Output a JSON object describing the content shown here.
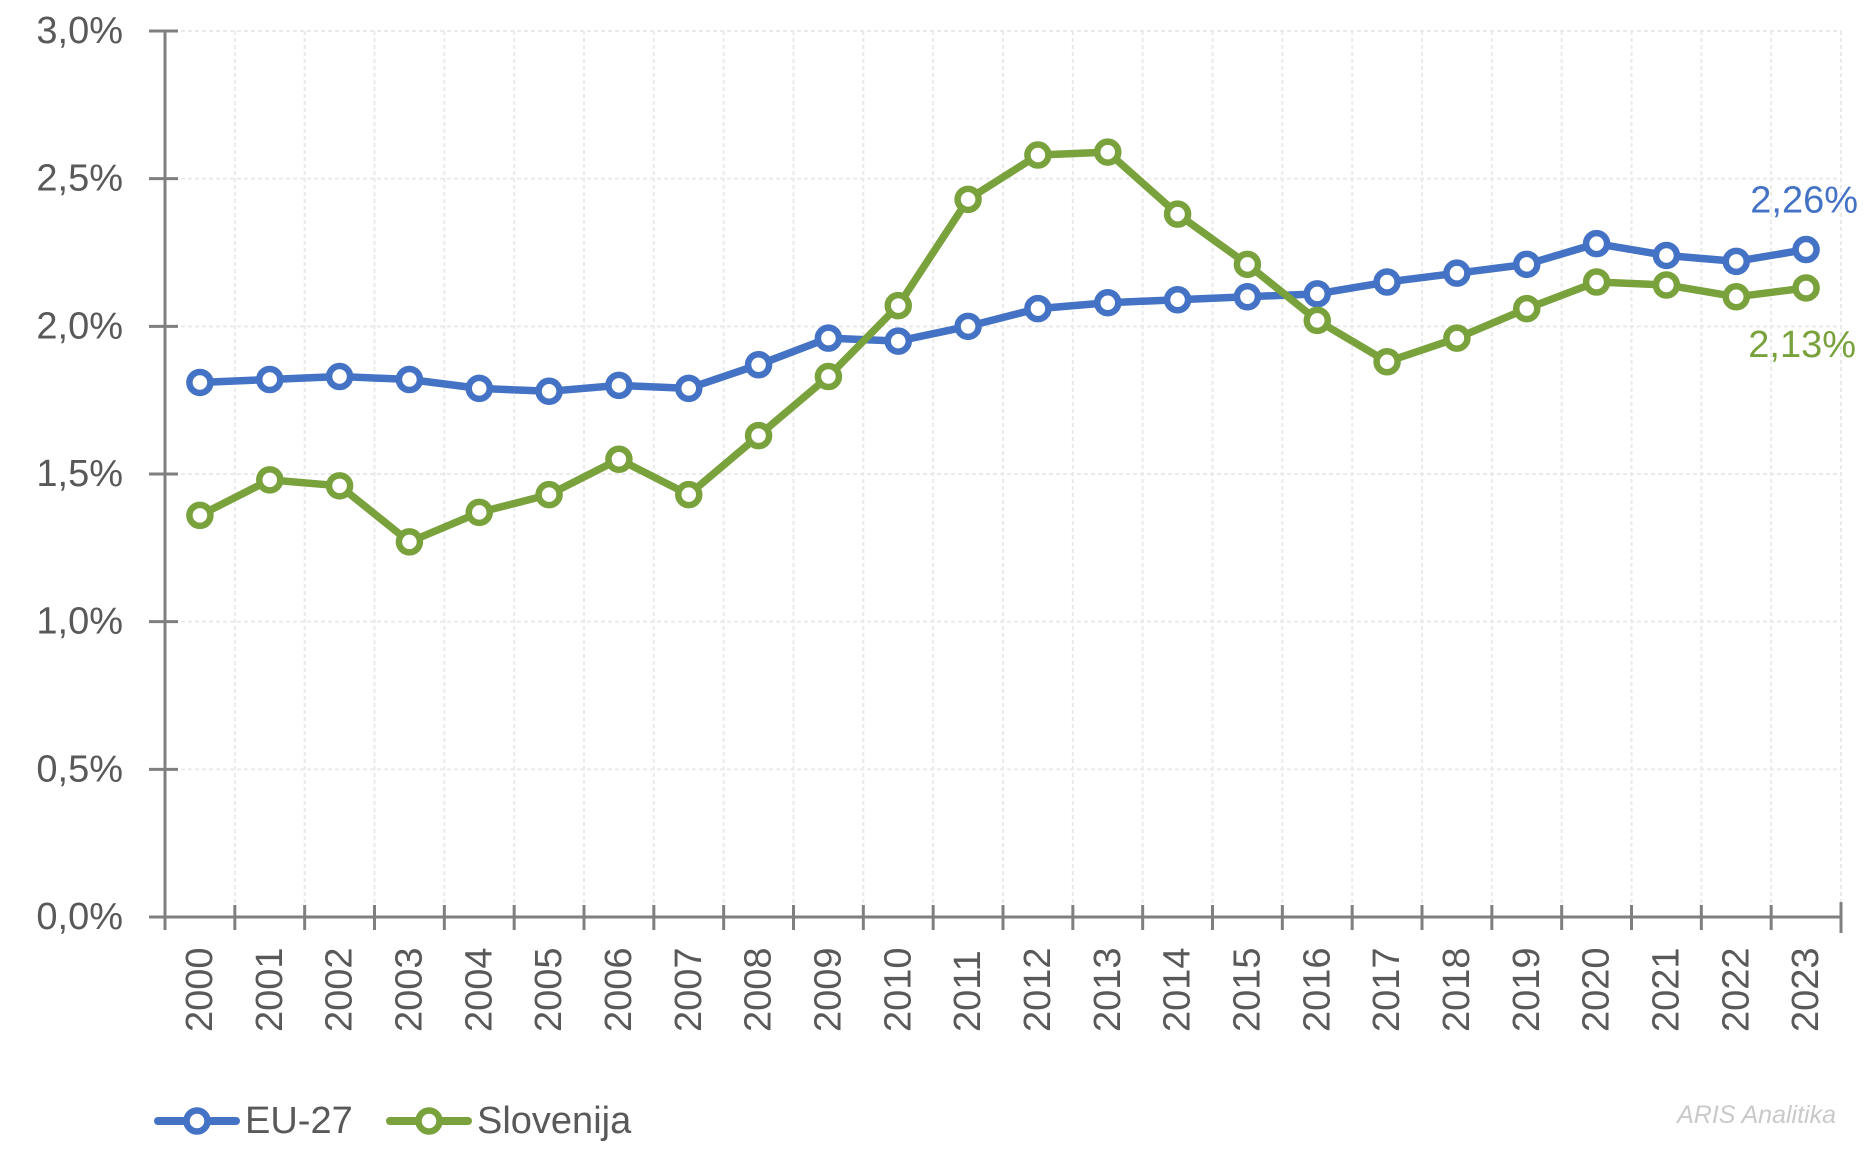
{
  "chart_data": {
    "type": "line",
    "title": "",
    "xlabel": "",
    "ylabel": "",
    "x": [
      "2000",
      "2001",
      "2002",
      "2003",
      "2004",
      "2005",
      "2006",
      "2007",
      "2008",
      "2009",
      "2010",
      "2011",
      "2012",
      "2013",
      "2014",
      "2015",
      "2016",
      "2017",
      "2018",
      "2019",
      "2020",
      "2021",
      "2022",
      "2023"
    ],
    "y_axis": {
      "min": 0,
      "max": 3,
      "step": 0.5,
      "tick_labels": [
        "0,0%",
        "0,5%",
        "1,0%",
        "1,5%",
        "2,0%",
        "2,5%",
        "3,0%"
      ],
      "unit": "%"
    },
    "grid": "dashed horizontal and vertical",
    "legend_position": "bottom-left",
    "series": [
      {
        "name": "EU-27",
        "color": "#4472C4",
        "end_label": "2,26%",
        "values": [
          1.81,
          1.82,
          1.83,
          1.82,
          1.79,
          1.78,
          1.8,
          1.79,
          1.87,
          1.96,
          1.95,
          2.0,
          2.06,
          2.08,
          2.09,
          2.1,
          2.11,
          2.15,
          2.18,
          2.21,
          2.28,
          2.24,
          2.22,
          2.26
        ]
      },
      {
        "name": "Slovenija",
        "color": "#79A23D",
        "end_label": "2,13%",
        "values": [
          1.36,
          1.48,
          1.46,
          1.27,
          1.37,
          1.43,
          1.55,
          1.43,
          1.63,
          1.83,
          2.07,
          2.43,
          2.58,
          2.59,
          2.38,
          2.21,
          2.02,
          1.88,
          1.96,
          2.06,
          2.15,
          2.14,
          2.1,
          2.13
        ]
      }
    ],
    "watermark": "ARIS Analitika",
    "colors": {
      "axis": "#7f7f7f",
      "labels": "#595959",
      "gridlines": "#eaeaea",
      "watermark": "#c9c9c9"
    }
  }
}
